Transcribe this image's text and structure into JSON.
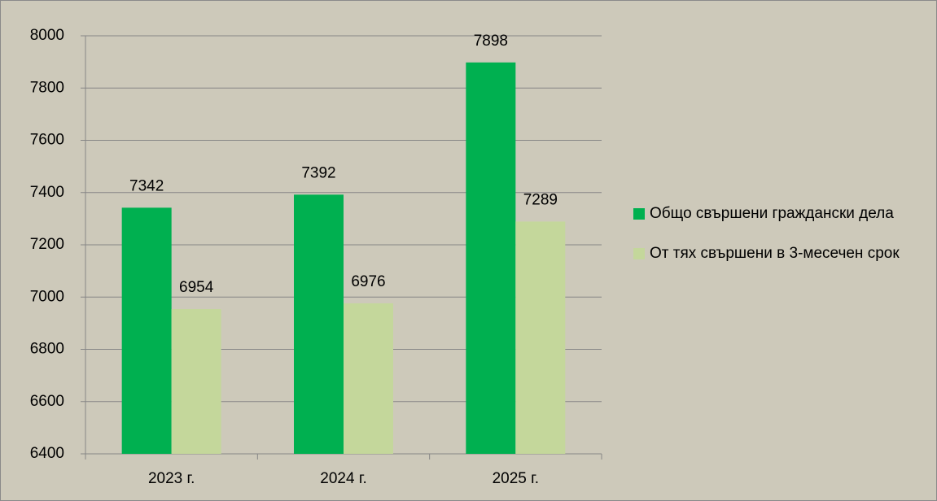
{
  "chart_data": {
    "type": "bar",
    "categories": [
      "2023 г.",
      "2024 г.",
      "2025 г."
    ],
    "series": [
      {
        "name": "Общо свършени граждански дела",
        "color": "#00b050",
        "values": [
          7342,
          7392,
          7898
        ]
      },
      {
        "name": "От тях свършени в 3-месечен срок",
        "color": "#c4d79b",
        "values": [
          6954,
          6976,
          7289
        ]
      }
    ],
    "ylim": [
      6400,
      8000
    ],
    "yticks": [
      6400,
      6600,
      6800,
      7000,
      7200,
      7400,
      7600,
      7800,
      8000
    ],
    "grid": true,
    "legend": "right"
  }
}
